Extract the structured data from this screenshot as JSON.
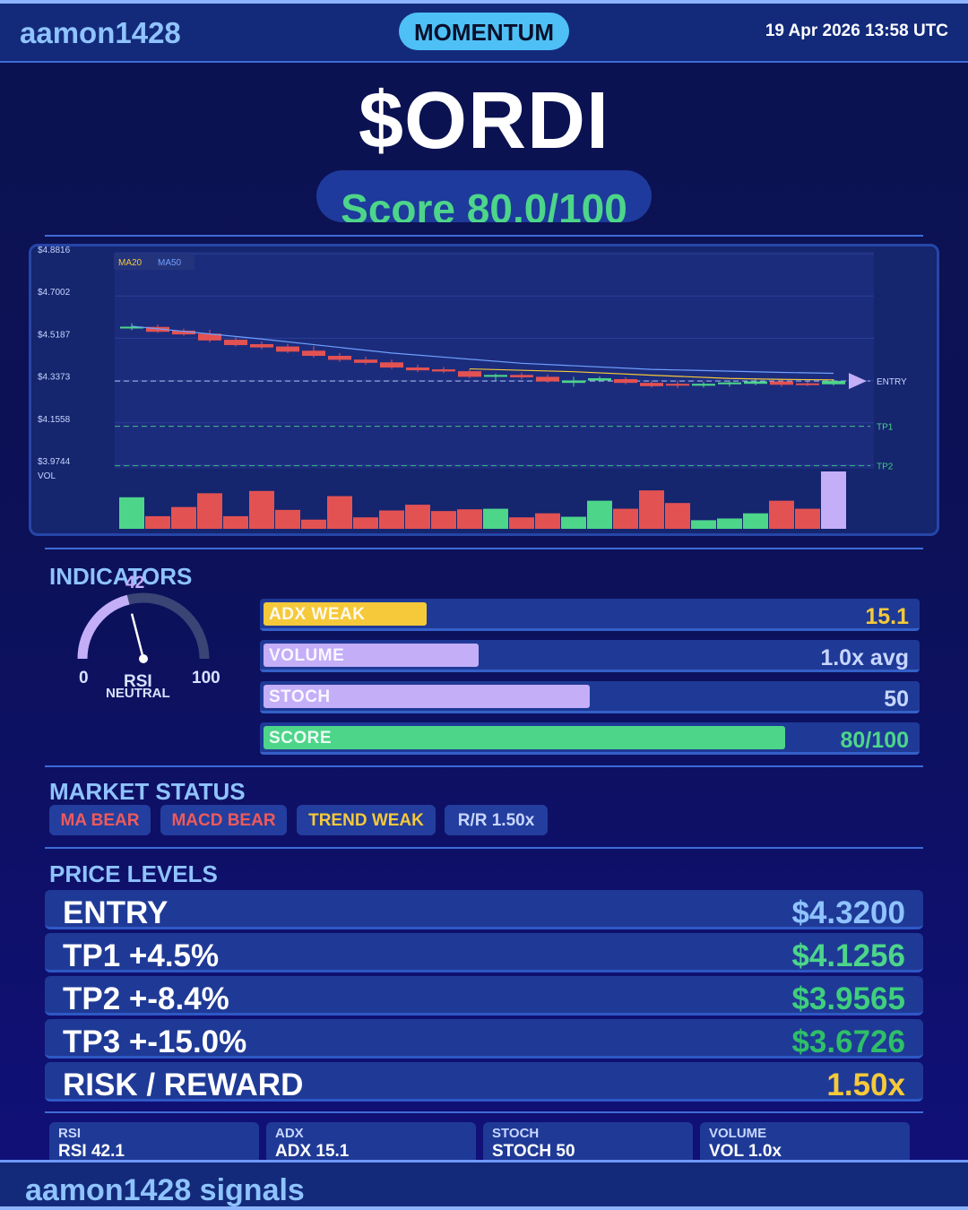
{
  "header": {
    "brand": "aamon1428",
    "mode_badge": "MOMENTUM",
    "datetime": "19 Apr 2026  13:58 UTC"
  },
  "ticker": "$ORDI",
  "score_label": "Score 80.0/100",
  "chart_data": {
    "type": "candlestick",
    "legend": [
      "MA20",
      "MA50"
    ],
    "y_tick_labels": [
      "$4.8816",
      "$4.7002",
      "$4.5187",
      "$4.3373",
      "$4.1558",
      "$3.9744"
    ],
    "ylim": [
      3.9744,
      4.8816
    ],
    "candles": [
      {
        "o": 4.55,
        "c": 4.553,
        "h": 4.568,
        "l": 4.538
      },
      {
        "o": 4.552,
        "c": 4.531,
        "h": 4.562,
        "l": 4.526
      },
      {
        "o": 4.536,
        "c": 4.52,
        "h": 4.545,
        "l": 4.514
      },
      {
        "o": 4.523,
        "c": 4.494,
        "h": 4.54,
        "l": 4.486
      },
      {
        "o": 4.497,
        "c": 4.474,
        "h": 4.508,
        "l": 4.468
      },
      {
        "o": 4.478,
        "c": 4.464,
        "h": 4.49,
        "l": 4.456
      },
      {
        "o": 4.468,
        "c": 4.446,
        "h": 4.48,
        "l": 4.44
      },
      {
        "o": 4.45,
        "c": 4.428,
        "h": 4.47,
        "l": 4.42
      },
      {
        "o": 4.428,
        "c": 4.411,
        "h": 4.44,
        "l": 4.402
      },
      {
        "o": 4.412,
        "c": 4.398,
        "h": 4.424,
        "l": 4.39
      },
      {
        "o": 4.4,
        "c": 4.378,
        "h": 4.412,
        "l": 4.372
      },
      {
        "o": 4.378,
        "c": 4.366,
        "h": 4.39,
        "l": 4.358
      },
      {
        "o": 4.37,
        "c": 4.361,
        "h": 4.38,
        "l": 4.354
      },
      {
        "o": 4.362,
        "c": 4.338,
        "h": 4.372,
        "l": 4.332
      },
      {
        "o": 4.338,
        "c": 4.346,
        "h": 4.352,
        "l": 4.32
      },
      {
        "o": 4.346,
        "c": 4.336,
        "h": 4.356,
        "l": 4.328
      },
      {
        "o": 4.338,
        "c": 4.318,
        "h": 4.348,
        "l": 4.312
      },
      {
        "o": 4.312,
        "c": 4.322,
        "h": 4.338,
        "l": 4.296
      },
      {
        "o": 4.322,
        "c": 4.332,
        "h": 4.34,
        "l": 4.316
      },
      {
        "o": 4.328,
        "c": 4.312,
        "h": 4.336,
        "l": 4.306
      },
      {
        "o": 4.312,
        "c": 4.298,
        "h": 4.322,
        "l": 4.292
      },
      {
        "o": 4.308,
        "c": 4.3,
        "h": 4.322,
        "l": 4.29
      },
      {
        "o": 4.3,
        "c": 4.308,
        "h": 4.316,
        "l": 4.292
      },
      {
        "o": 4.306,
        "c": 4.314,
        "h": 4.322,
        "l": 4.296
      },
      {
        "o": 4.308,
        "c": 4.318,
        "h": 4.326,
        "l": 4.302
      },
      {
        "o": 4.318,
        "c": 4.304,
        "h": 4.328,
        "l": 4.296
      },
      {
        "o": 4.31,
        "c": 4.304,
        "h": 4.318,
        "l": 4.298
      },
      {
        "o": 4.306,
        "c": 4.32,
        "h": 4.328,
        "l": 4.3
      }
    ],
    "ma20": [
      [
        13,
        4.372
      ],
      [
        17,
        4.36
      ],
      [
        20,
        4.345
      ],
      [
        23,
        4.331
      ],
      [
        25,
        4.327
      ],
      [
        27,
        4.325
      ]
    ],
    "ma50": [
      [
        0,
        4.555
      ],
      [
        5,
        4.5
      ],
      [
        10,
        4.44
      ],
      [
        15,
        4.396
      ],
      [
        20,
        4.37
      ],
      [
        25,
        4.357
      ],
      [
        27,
        4.353
      ]
    ],
    "volume": [
      0.55,
      0.22,
      0.38,
      0.62,
      0.22,
      0.66,
      0.33,
      0.16,
      0.57,
      0.2,
      0.32,
      0.42,
      0.31,
      0.34,
      0.35,
      0.2,
      0.27,
      0.21,
      0.49,
      0.35,
      0.67,
      0.45,
      0.15,
      0.18,
      0.27,
      0.49,
      0.35,
      1.0
    ],
    "levels": [
      {
        "label": "ENTRY",
        "value": 4.32
      },
      {
        "label": "TP1",
        "value": 4.1256
      },
      {
        "label": "TP2",
        "value": 3.9565
      }
    ],
    "vol_label": "VOL"
  },
  "indicators": {
    "title": "INDICATORS",
    "rsi": {
      "value": 42,
      "value_label": "42",
      "min_label": "0",
      "max_label": "100",
      "name": "RSI",
      "state": "NEUTRAL"
    },
    "bars": [
      {
        "name": "ADX  WEAK",
        "value": "15.1",
        "fill": 0.25,
        "color": "#f5c93a",
        "text_color": "#f5c93a"
      },
      {
        "name": "VOLUME",
        "value": "1.0x avg",
        "fill": 0.33,
        "color": "#c4aef8",
        "text_color": "#c7d6ff"
      },
      {
        "name": "STOCH",
        "value": "50",
        "fill": 0.5,
        "color": "#c4aef8",
        "text_color": "#c7d6ff"
      },
      {
        "name": "SCORE",
        "value": "80/100",
        "fill": 0.8,
        "color": "#4dd58a",
        "text_color": "#4dd58a"
      }
    ]
  },
  "market_status": {
    "title": "MARKET STATUS",
    "chips": [
      {
        "label": "MA BEAR",
        "color": "#ef5a5a"
      },
      {
        "label": "MACD BEAR",
        "color": "#ef5a5a"
      },
      {
        "label": "TREND WEAK",
        "color": "#f5c93a"
      },
      {
        "label": "R/R  1.50x",
        "color": "#c7d6ff"
      }
    ]
  },
  "price_levels": {
    "title": "PRICE LEVELS",
    "rows": [
      {
        "name": "ENTRY",
        "value": "$4.3200",
        "color": "#8fc3ff"
      },
      {
        "name": "TP1  +4.5%",
        "value": "$4.1256",
        "color": "#4dd58a"
      },
      {
        "name": "TP2  +-8.4%",
        "value": "$3.9565",
        "color": "#3fcf7c"
      },
      {
        "name": "TP3  +-15.0%",
        "value": "$3.6726",
        "color": "#2fbf68"
      },
      {
        "name": "RISK / REWARD",
        "value": "1.50x",
        "color": "#f5c93a"
      }
    ]
  },
  "stats": [
    {
      "label": "RSI",
      "value": "RSI 42.1"
    },
    {
      "label": "ADX",
      "value": "ADX 15.1"
    },
    {
      "label": "STOCH",
      "value": "STOCH 50"
    },
    {
      "label": "VOLUME",
      "value": "VOL 1.0x"
    }
  ],
  "footer": {
    "text": "aamon1428 signals"
  }
}
